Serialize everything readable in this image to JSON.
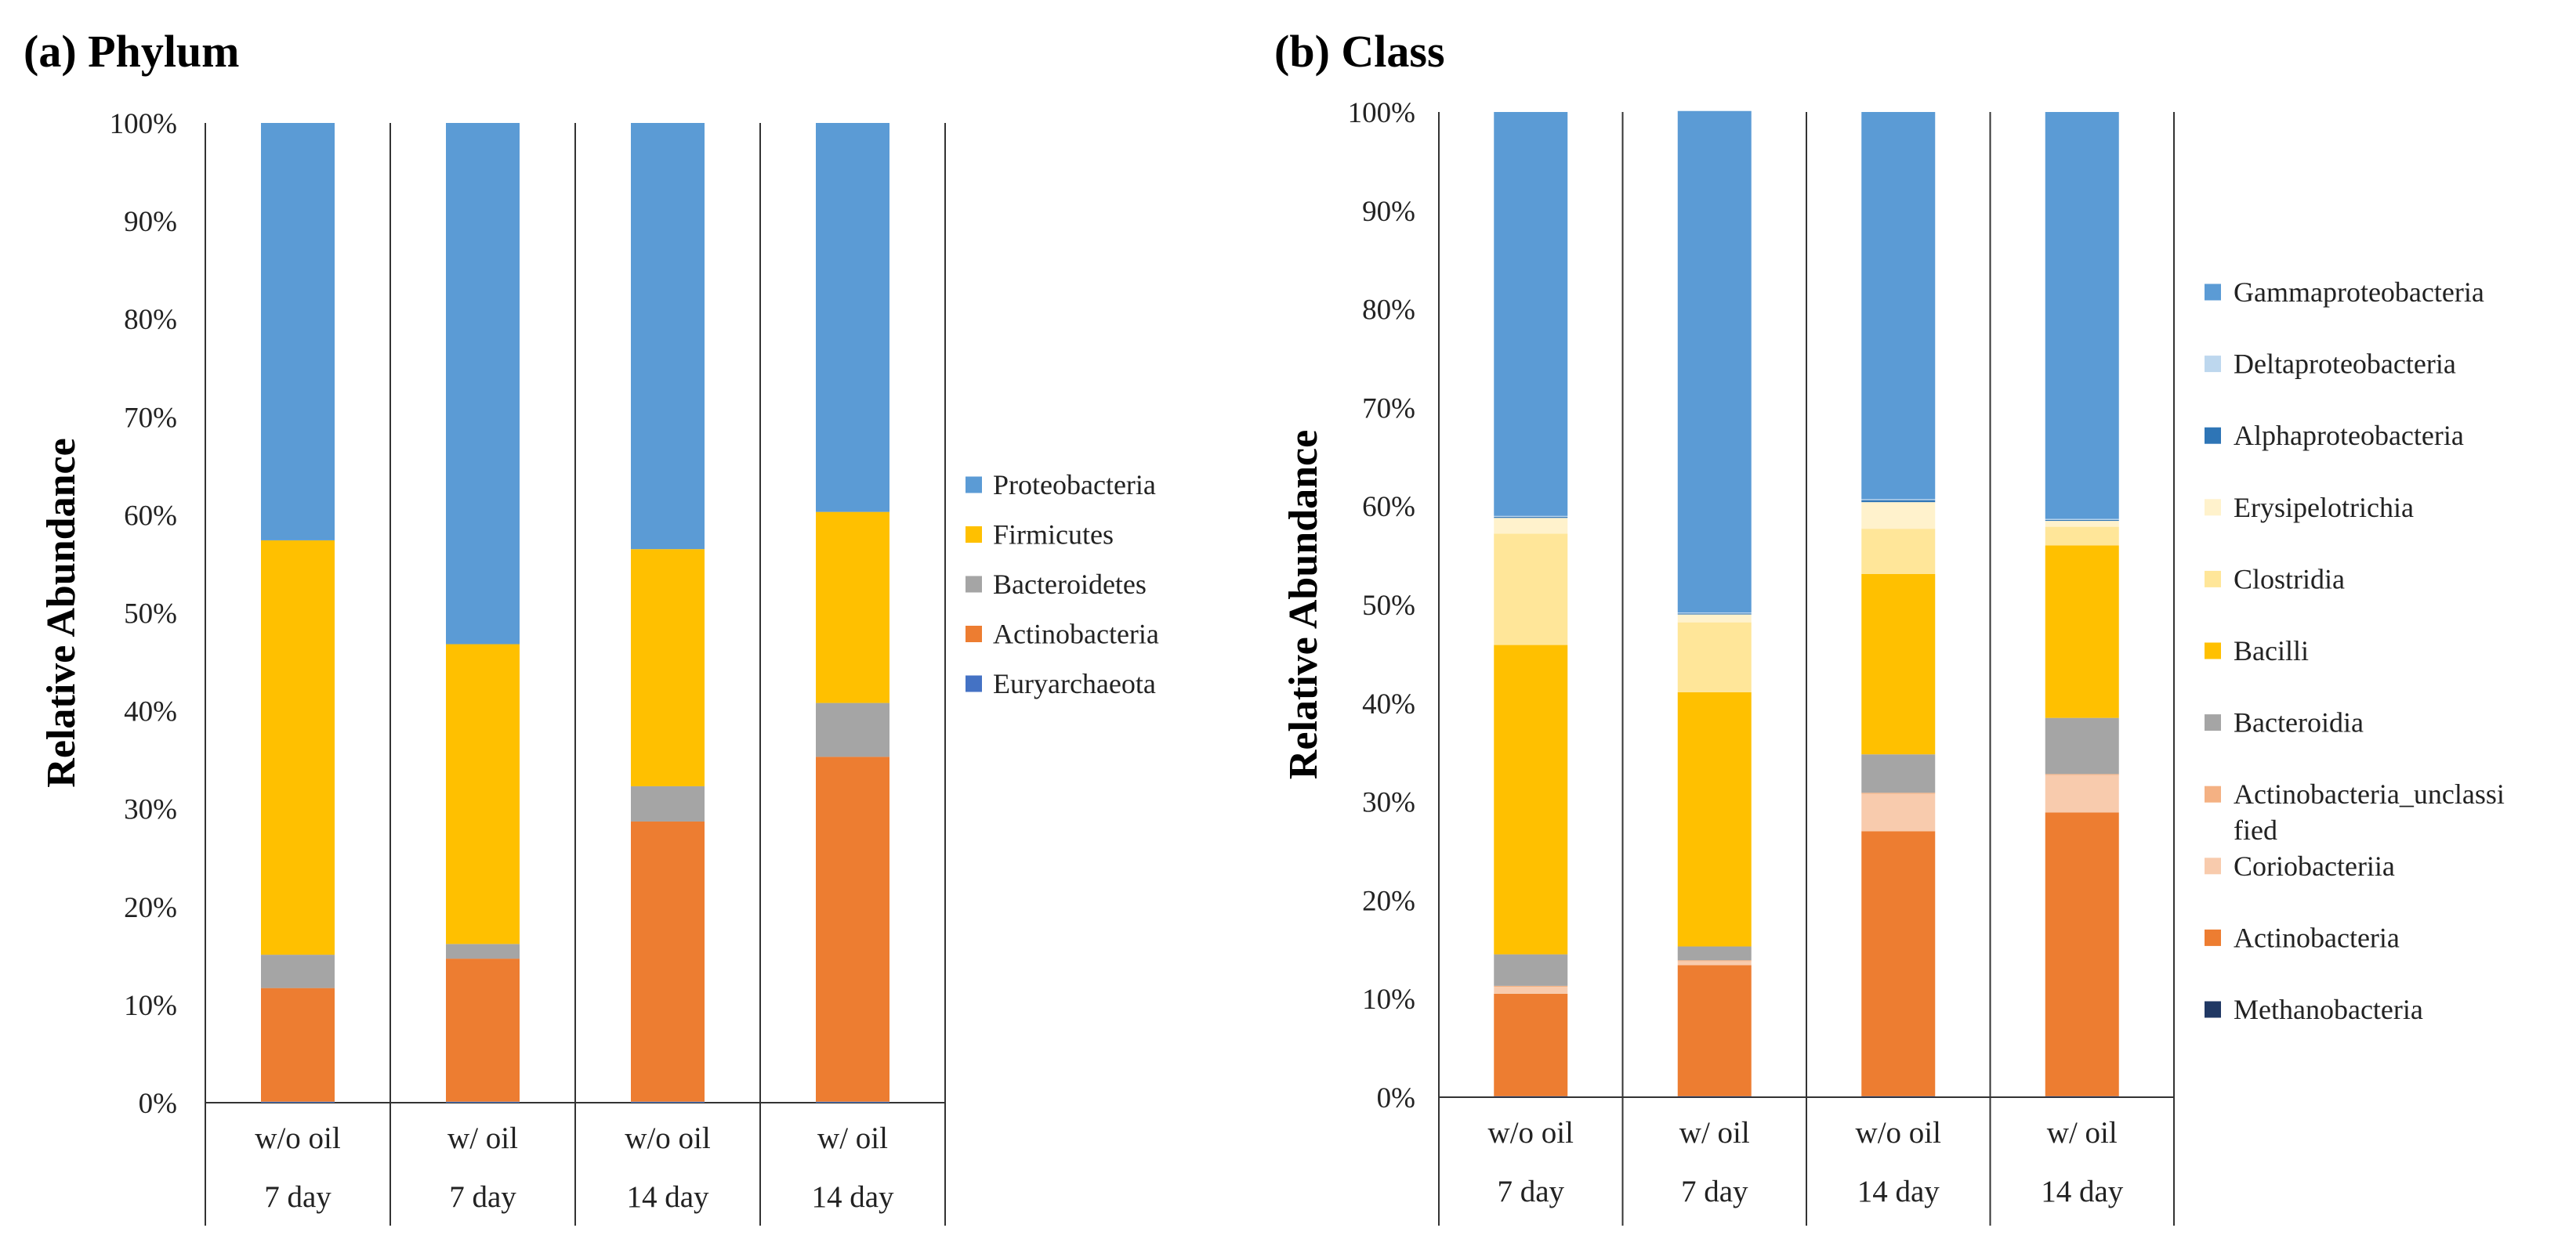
{
  "chart_data": [
    {
      "type": "bar",
      "stacked": true,
      "title": "(a) Phylum",
      "ylabel": "Relative Abundance",
      "ylim": [
        0,
        100
      ],
      "yticks": [
        "0%",
        "10%",
        "20%",
        "30%",
        "40%",
        "50%",
        "60%",
        "70%",
        "80%",
        "90%",
        "100%"
      ],
      "categories": [
        {
          "treatment": "w/o oil",
          "time": "7 day"
        },
        {
          "treatment": "w/ oil",
          "time": "7 day"
        },
        {
          "treatment": "w/o oil",
          "time": "14 day"
        },
        {
          "treatment": "w/ oil",
          "time": "14 day"
        }
      ],
      "legend_position": "right",
      "series": [
        {
          "name": "Euryarchaeota",
          "color": "#4472C4",
          "values": [
            0.1,
            0.1,
            0.1,
            0.1
          ]
        },
        {
          "name": "Actinobacteria",
          "color": "#ED7D31",
          "values": [
            11.6,
            14.6,
            28.6,
            35.2
          ]
        },
        {
          "name": "Bacteroidetes",
          "color": "#A5A5A5",
          "values": [
            3.4,
            1.5,
            3.6,
            5.5
          ]
        },
        {
          "name": "Firmicutes",
          "color": "#FFC000",
          "values": [
            42.3,
            30.6,
            24.2,
            19.5
          ]
        },
        {
          "name": "Proteobacteria",
          "color": "#5B9BD5",
          "values": [
            42.6,
            53.2,
            43.5,
            39.7
          ]
        }
      ],
      "legend_order": [
        "Proteobacteria",
        "Firmicutes",
        "Bacteroidetes",
        "Actinobacteria",
        "Euryarchaeota"
      ]
    },
    {
      "type": "bar",
      "stacked": true,
      "title": "(b) Class",
      "ylabel": "Relative Abundance",
      "ylim": [
        0,
        100
      ],
      "yticks": [
        "0%",
        "10%",
        "20%",
        "30%",
        "40%",
        "50%",
        "60%",
        "70%",
        "80%",
        "90%",
        "100%"
      ],
      "categories": [
        {
          "treatment": "w/o oil",
          "time": "7 day"
        },
        {
          "treatment": "w/ oil",
          "time": "7 day"
        },
        {
          "treatment": "w/o oil",
          "time": "14 day"
        },
        {
          "treatment": "w/ oil",
          "time": "14 day"
        }
      ],
      "legend_position": "right",
      "series": [
        {
          "name": "Methanobacteria",
          "color": "#203864",
          "values": [
            0.1,
            0.1,
            0.1,
            0.1
          ]
        },
        {
          "name": "Actinobacteria",
          "color": "#ED7D31",
          "values": [
            10.4,
            13.3,
            26.9,
            28.8
          ]
        },
        {
          "name": "Coriobacteriia",
          "color": "#F8CBAD",
          "values": [
            0.7,
            0.4,
            3.8,
            3.8
          ]
        },
        {
          "name": "Actinobacteria_unclassified",
          "color": "#F4B183",
          "values": [
            0.1,
            0.1,
            0.1,
            0.1
          ]
        },
        {
          "name": "Bacteroidia",
          "color": "#A5A5A5",
          "values": [
            3.2,
            1.4,
            3.9,
            5.7
          ]
        },
        {
          "name": "Bacilli",
          "color": "#FFC000",
          "values": [
            31.4,
            25.8,
            18.3,
            17.5
          ]
        },
        {
          "name": "Clostridia",
          "color": "#FFE699",
          "values": [
            11.3,
            7.1,
            4.6,
            1.9
          ]
        },
        {
          "name": "Erysipelotrichia",
          "color": "#FFF2CC",
          "values": [
            1.6,
            0.8,
            2.7,
            0.6
          ]
        },
        {
          "name": "Alphaproteobacteria",
          "color": "#2E75B6",
          "values": [
            0.1,
            0.1,
            0.2,
            0.1
          ]
        },
        {
          "name": "Deltaproteobacteria",
          "color": "#BDD7EE",
          "values": [
            0.1,
            0.1,
            0.1,
            0.1
          ]
        },
        {
          "name": "Gammaproteobacteria",
          "color": "#5B9BD5",
          "values": [
            41.0,
            50.9,
            39.3,
            41.3
          ]
        }
      ],
      "legend_order": [
        "Gammaproteobacteria",
        "Deltaproteobacteria",
        "Alphaproteobacteria",
        "Erysipelotrichia",
        "Clostridia",
        "Bacilli",
        "Bacteroidia",
        "Actinobacteria_unclassified",
        "Coriobacteriia",
        "Actinobacteria",
        "Methanobacteria"
      ]
    }
  ]
}
